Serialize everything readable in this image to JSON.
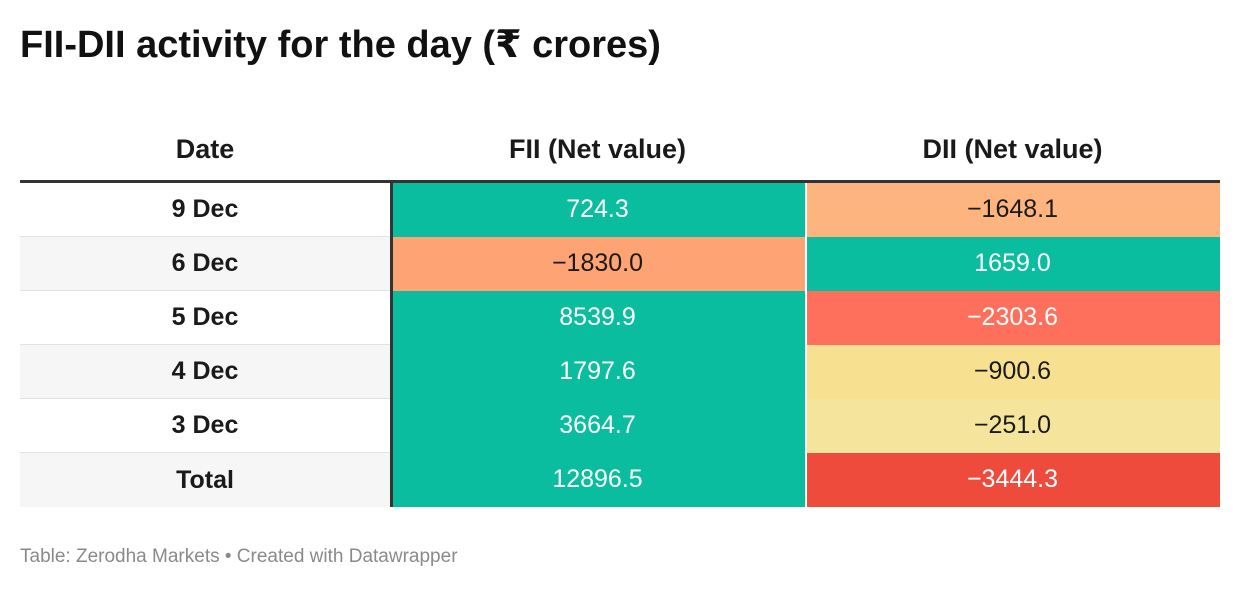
{
  "title": "FII-DII activity for the day (₹ crores)",
  "source": "Table: Zerodha Markets • Created with Datawrapper",
  "chart_data": {
    "type": "table",
    "title": "FII-DII activity for the day (₹ crores)",
    "columns": [
      "Date",
      "FII (Net value)",
      "DII (Net value)"
    ],
    "rows": [
      {
        "date": "9 Dec",
        "fii": "724.3",
        "dii": "−1648.1"
      },
      {
        "date": "6 Dec",
        "fii": "−1830.0",
        "dii": "1659.0"
      },
      {
        "date": "5 Dec",
        "fii": "8539.9",
        "dii": "−2303.6"
      },
      {
        "date": "4 Dec",
        "fii": "1797.6",
        "dii": "−900.6"
      },
      {
        "date": "3 Dec",
        "fii": "3664.7",
        "dii": "−251.0"
      },
      {
        "date": "Total",
        "fii": "12896.5",
        "dii": "−3444.3"
      }
    ],
    "colors": {
      "positive": "#0bbd9f",
      "neg_small": "#f5e59c",
      "neg_light": "#f7e08f",
      "neg_orange_light": "#fdb47f",
      "neg_orange": "#fda374",
      "neg_red": "#fe705c",
      "neg_deep": "#ef4b3c"
    }
  }
}
